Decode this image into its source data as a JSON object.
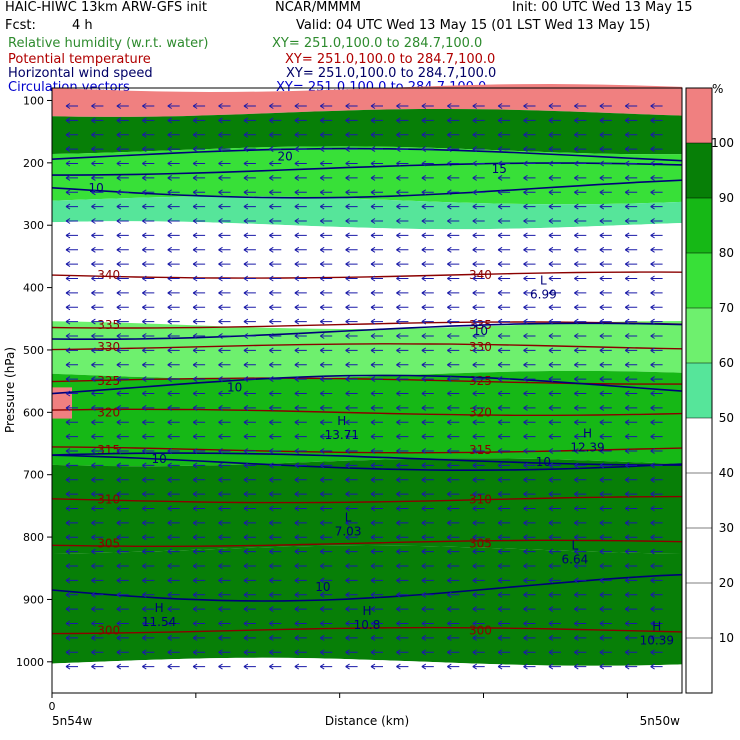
{
  "header": {
    "model_line": "HAIC-HIWC 13km ARW-GFS init",
    "org": "NCAR/MMMM",
    "init": "Init: 00 UTC Wed 13 May 15",
    "fcst_label": "Fcst:",
    "fcst_value": "4 h",
    "valid": "Valid: 04 UTC Wed 13 May 15 (01 LST Wed 13 May 15)"
  },
  "legend": [
    {
      "label": "Relative humidity (w.r.t. water)",
      "xy": "XY= 251.0,100.0 to 284.7,100.0",
      "color": "#2e8b2e"
    },
    {
      "label": "Potential temperature",
      "xy": "XY= 251.0,100.0 to 284.7,100.0",
      "color": "#b00000"
    },
    {
      "label": "Horizontal wind speed",
      "xy": "XY= 251.0,100.0 to 284.7,100.0",
      "color": "#000066"
    },
    {
      "label": "Circulation vectors",
      "xy": "XY= 251.0,100.0 to 284.7,100.0",
      "color": "#0000cc"
    }
  ],
  "chart_data": {
    "type": "heatmap",
    "xlabel": "Distance (km)",
    "ylabel": "Pressure (hPa)",
    "x_start_label": "0",
    "x_left_label": "5n54w",
    "x_right_label": "5n50w",
    "y_ticks": [
      100,
      200,
      300,
      400,
      500,
      600,
      700,
      800,
      900,
      1000
    ],
    "ylim": [
      1050,
      80
    ],
    "colorbar": {
      "unit": "%",
      "ticks": [
        10,
        20,
        30,
        40,
        50,
        60,
        70,
        80,
        90,
        100
      ],
      "bins": [
        {
          "lo": 0,
          "hi": 50,
          "color": "#ffffff"
        },
        {
          "lo": 50,
          "hi": 60,
          "color": "#56e59a"
        },
        {
          "lo": 60,
          "hi": 70,
          "color": "#6ef06e"
        },
        {
          "lo": 70,
          "hi": 80,
          "color": "#38e038"
        },
        {
          "lo": 80,
          "hi": 90,
          "color": "#16b816"
        },
        {
          "lo": 90,
          "hi": 100,
          "color": "#077f07"
        },
        {
          "lo": 100,
          "hi": 110,
          "color": "#f08080"
        }
      ]
    },
    "rh_bands": [
      {
        "top": 80,
        "bottom": 120,
        "rh": 100
      },
      {
        "top": 120,
        "bottom": 180,
        "rh": 92
      },
      {
        "top": 180,
        "bottom": 260,
        "rh": 75
      },
      {
        "top": 260,
        "bottom": 300,
        "rh": 55
      },
      {
        "top": 300,
        "bottom": 460,
        "rh": 40
      },
      {
        "top": 460,
        "bottom": 540,
        "rh": 65
      },
      {
        "top": 540,
        "bottom": 680,
        "rh": 85
      },
      {
        "top": 680,
        "bottom": 820,
        "rh": 92
      },
      {
        "top": 820,
        "bottom": 1000,
        "rh": 95
      },
      {
        "top": 1000,
        "bottom": 1050,
        "rh": 0
      }
    ],
    "theta_contours": [
      {
        "label": "340",
        "p": 380
      },
      {
        "label": "335",
        "p": 460
      },
      {
        "label": "330",
        "p": 495
      },
      {
        "label": "325",
        "p": 550
      },
      {
        "label": "320",
        "p": 600
      },
      {
        "label": "315",
        "p": 660
      },
      {
        "label": "310",
        "p": 740
      },
      {
        "label": "305",
        "p": 810
      },
      {
        "label": "300",
        "p": 950
      }
    ],
    "wind_labels": [
      "10",
      "10",
      "10",
      "10",
      "10",
      "10",
      "15",
      "20"
    ],
    "extrema": [
      {
        "kind": "L",
        "value": "6.99",
        "x": 0.78,
        "p": 395
      },
      {
        "kind": "H",
        "value": "13.71",
        "x": 0.46,
        "p": 620
      },
      {
        "kind": "H",
        "value": "12.39",
        "x": 0.85,
        "p": 640
      },
      {
        "kind": "L",
        "value": "7.03",
        "x": 0.47,
        "p": 775
      },
      {
        "kind": "L",
        "value": "6.64",
        "x": 0.83,
        "p": 820
      },
      {
        "kind": "H",
        "value": "11.54",
        "x": 0.17,
        "p": 920
      },
      {
        "kind": "H",
        "value": "10.8",
        "x": 0.5,
        "p": 925
      },
      {
        "kind": "H",
        "value": "10.39",
        "x": 0.96,
        "p": 950
      }
    ]
  }
}
